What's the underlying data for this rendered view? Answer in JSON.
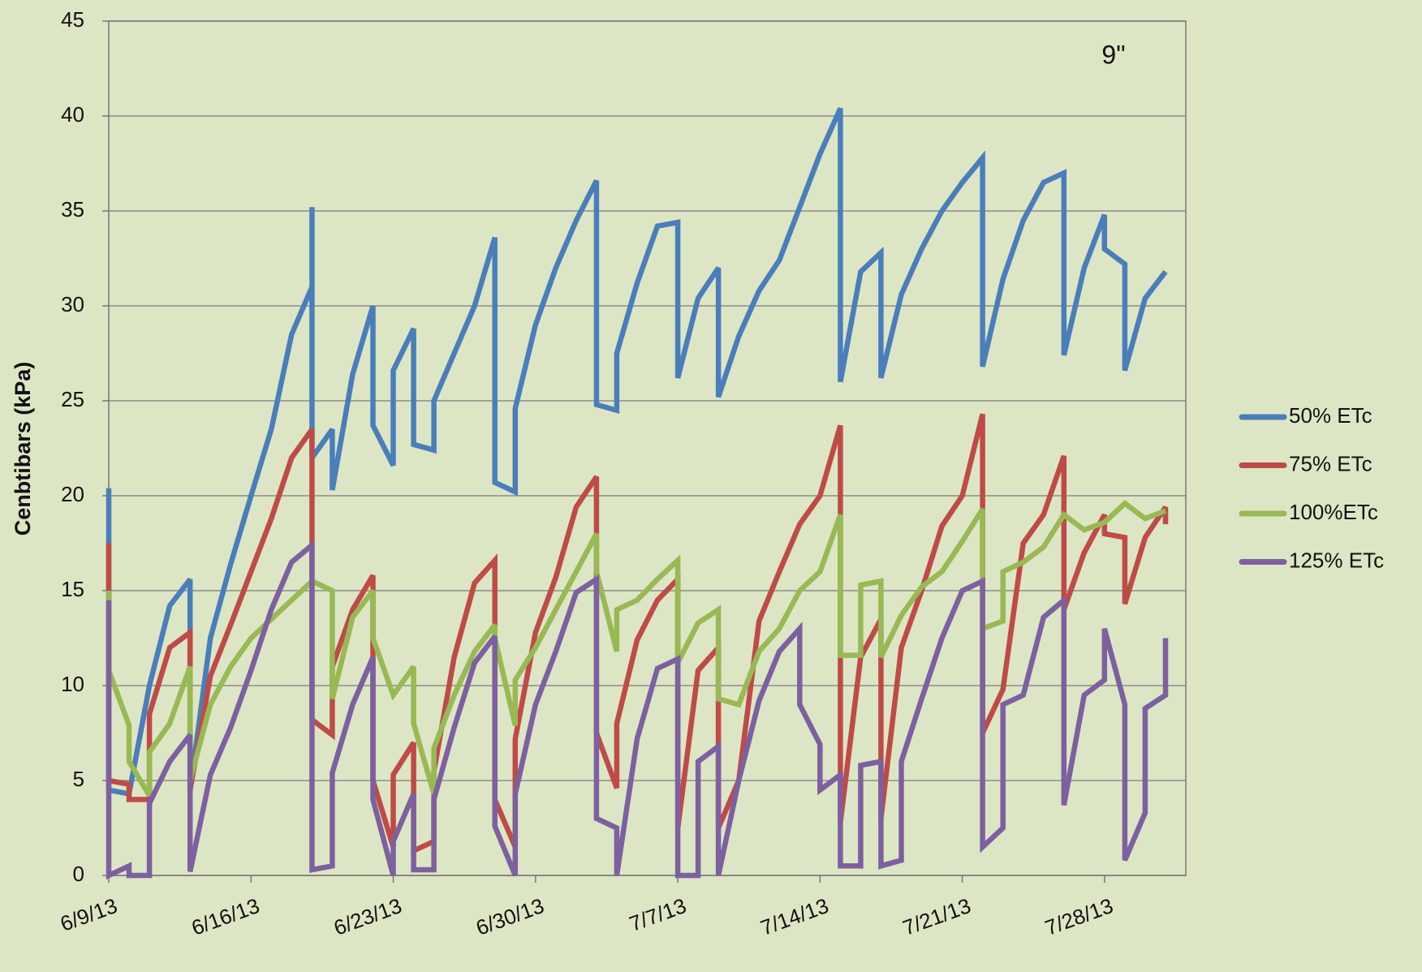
{
  "chart_data": {
    "type": "line",
    "annotation": "9\"",
    "y_label": "Cenbtibars (kPa)",
    "xlim": [
      "2013-06-09",
      "2013-08-01"
    ],
    "xticks": [
      {
        "value": "2013-06-09",
        "label": "6/9/13"
      },
      {
        "value": "2013-06-16",
        "label": "6/16/13"
      },
      {
        "value": "2013-06-23",
        "label": "6/23/13"
      },
      {
        "value": "2013-06-30",
        "label": "6/30/13"
      },
      {
        "value": "2013-07-07",
        "label": "7/7/13"
      },
      {
        "value": "2013-07-14",
        "label": "7/14/13"
      },
      {
        "value": "2013-07-21",
        "label": "7/21/13"
      },
      {
        "value": "2013-07-28",
        "label": "7/28/13"
      }
    ],
    "ylim": [
      0,
      45
    ],
    "yticks": [
      0,
      5,
      10,
      15,
      20,
      25,
      30,
      35,
      40,
      45
    ],
    "grid": true,
    "legend": "right",
    "series": [
      {
        "name": "50% ETc",
        "color": "#4a7ebb",
        "x": [
          "2013-06-09",
          "2013-06-09",
          "2013-06-10",
          "2013-06-11",
          "2013-06-12",
          "2013-06-13",
          "2013-06-13",
          "2013-06-14",
          "2013-06-15",
          "2013-06-16",
          "2013-06-17",
          "2013-06-18",
          "2013-06-19",
          "2013-06-19",
          "2013-06-19",
          "2013-06-20",
          "2013-06-20",
          "2013-06-21",
          "2013-06-22",
          "2013-06-22",
          "2013-06-23",
          "2013-06-23",
          "2013-06-24",
          "2013-06-24",
          "2013-06-25",
          "2013-06-25",
          "2013-06-26",
          "2013-06-27",
          "2013-06-28",
          "2013-06-28",
          "2013-06-29",
          "2013-06-29",
          "2013-06-30",
          "2013-07-01",
          "2013-07-02",
          "2013-07-03",
          "2013-07-03",
          "2013-07-04",
          "2013-07-04",
          "2013-07-05",
          "2013-07-06",
          "2013-07-07",
          "2013-07-07",
          "2013-07-08",
          "2013-07-09",
          "2013-07-09",
          "2013-07-10",
          "2013-07-11",
          "2013-07-12",
          "2013-07-13",
          "2013-07-14",
          "2013-07-15",
          "2013-07-15",
          "2013-07-16",
          "2013-07-17",
          "2013-07-17",
          "2013-07-18",
          "2013-07-19",
          "2013-07-20",
          "2013-07-21",
          "2013-07-22",
          "2013-07-22",
          "2013-07-23",
          "2013-07-24",
          "2013-07-25",
          "2013-07-26",
          "2013-07-26",
          "2013-07-27",
          "2013-07-28",
          "2013-07-28",
          "2013-07-29",
          "2013-07-29",
          "2013-07-30",
          "2013-07-31"
        ],
        "values": [
          20.4,
          4.5,
          4.3,
          10,
          14.2,
          15.6,
          4.5,
          12.5,
          16.4,
          20,
          23.5,
          28.5,
          31,
          35.2,
          22,
          23.5,
          20.3,
          26.4,
          30,
          23.7,
          21.6,
          26.6,
          28.8,
          22.7,
          22.4,
          25,
          27.5,
          30,
          33.6,
          20.7,
          20.2,
          24.6,
          29,
          32,
          34.5,
          36.6,
          24.8,
          24.5,
          27.5,
          31.2,
          34.2,
          34.4,
          26.2,
          30.4,
          32,
          25.2,
          28.4,
          30.8,
          32.4,
          35.2,
          38,
          40.4,
          26,
          31.8,
          32.8,
          26.2,
          30.6,
          33,
          35,
          36.5,
          37.8,
          26.8,
          31.4,
          34.5,
          36.5,
          37,
          27.4,
          32,
          34.8,
          33,
          32.2,
          26.6,
          30.4,
          31.8
        ]
      },
      {
        "name": "75% ETc",
        "color": "#be4b48",
        "x": [
          "2013-06-09",
          "2013-06-09",
          "2013-06-10",
          "2013-06-10",
          "2013-06-11",
          "2013-06-11",
          "2013-06-12",
          "2013-06-13",
          "2013-06-13",
          "2013-06-14",
          "2013-06-15",
          "2013-06-16",
          "2013-06-17",
          "2013-06-18",
          "2013-06-19",
          "2013-06-19",
          "2013-06-20",
          "2013-06-20",
          "2013-06-21",
          "2013-06-22",
          "2013-06-22",
          "2013-06-23",
          "2013-06-23",
          "2013-06-24",
          "2013-06-24",
          "2013-06-25",
          "2013-06-25",
          "2013-06-26",
          "2013-06-27",
          "2013-06-28",
          "2013-06-28",
          "2013-06-29",
          "2013-06-29",
          "2013-06-30",
          "2013-07-01",
          "2013-07-02",
          "2013-07-03",
          "2013-07-03",
          "2013-07-04",
          "2013-07-04",
          "2013-07-05",
          "2013-07-06",
          "2013-07-07",
          "2013-07-07",
          "2013-07-08",
          "2013-07-09",
          "2013-07-09",
          "2013-07-10",
          "2013-07-11",
          "2013-07-12",
          "2013-07-13",
          "2013-07-14",
          "2013-07-15",
          "2013-07-15",
          "2013-07-16",
          "2013-07-17",
          "2013-07-17",
          "2013-07-18",
          "2013-07-19",
          "2013-07-20",
          "2013-07-21",
          "2013-07-22",
          "2013-07-22",
          "2013-07-23",
          "2013-07-24",
          "2013-07-25",
          "2013-07-26",
          "2013-07-26",
          "2013-07-27",
          "2013-07-28",
          "2013-07-28",
          "2013-07-29",
          "2013-07-29",
          "2013-07-30",
          "2013-07-31",
          "2013-07-31"
        ],
        "values": [
          17.5,
          5,
          4.8,
          4,
          4,
          8.5,
          12,
          12.8,
          4.5,
          10.5,
          13.2,
          16,
          18.8,
          22,
          23.5,
          8.2,
          7.4,
          11,
          14,
          15.8,
          5,
          1.5,
          5.3,
          7,
          1.3,
          1.8,
          5.5,
          11.5,
          15.4,
          16.6,
          4,
          1.5,
          7.2,
          12.8,
          15.7,
          19.4,
          21,
          7.5,
          4.6,
          8,
          12.4,
          14.5,
          15.6,
          2.5,
          10.8,
          12,
          2.5,
          5,
          13.4,
          16,
          18.5,
          20,
          23.7,
          2.8,
          11.5,
          13.5,
          3,
          12,
          15,
          18.4,
          20,
          24.3,
          7.5,
          9.8,
          17.5,
          19,
          22.1,
          14,
          17,
          19,
          18,
          17.8,
          14.3,
          17.8,
          19.4,
          18.5
        ]
      },
      {
        "name": "100%ETc",
        "color": "#98b954",
        "x": [
          "2013-06-09",
          "2013-06-09",
          "2013-06-10",
          "2013-06-10",
          "2013-06-11",
          "2013-06-11",
          "2013-06-12",
          "2013-06-13",
          "2013-06-13",
          "2013-06-14",
          "2013-06-15",
          "2013-06-16",
          "2013-06-17",
          "2013-06-18",
          "2013-06-19",
          "2013-06-20",
          "2013-06-20",
          "2013-06-21",
          "2013-06-22",
          "2013-06-22",
          "2013-06-23",
          "2013-06-24",
          "2013-06-24",
          "2013-06-25",
          "2013-06-25",
          "2013-06-26",
          "2013-06-27",
          "2013-06-28",
          "2013-06-28",
          "2013-06-29",
          "2013-06-29",
          "2013-06-30",
          "2013-07-01",
          "2013-07-02",
          "2013-07-03",
          "2013-07-03",
          "2013-07-04",
          "2013-07-04",
          "2013-07-05",
          "2013-07-06",
          "2013-07-07",
          "2013-07-07",
          "2013-07-08",
          "2013-07-09",
          "2013-07-09",
          "2013-07-10",
          "2013-07-11",
          "2013-07-12",
          "2013-07-13",
          "2013-07-14",
          "2013-07-15",
          "2013-07-15",
          "2013-07-16",
          "2013-07-16",
          "2013-07-17",
          "2013-07-17",
          "2013-07-18",
          "2013-07-19",
          "2013-07-20",
          "2013-07-21",
          "2013-07-22",
          "2013-07-22",
          "2013-07-23",
          "2013-07-23",
          "2013-07-24",
          "2013-07-25",
          "2013-07-26",
          "2013-07-27",
          "2013-07-28",
          "2013-07-29",
          "2013-07-30",
          "2013-07-31"
        ],
        "values": [
          15,
          10.8,
          7.9,
          6,
          4.2,
          6.5,
          8,
          11,
          5,
          9,
          11,
          12.5,
          13.5,
          14.5,
          15.5,
          15,
          9.3,
          13.6,
          15,
          12.5,
          9.5,
          11,
          8,
          4.3,
          6.7,
          9.5,
          11.8,
          13.2,
          12.5,
          7.9,
          10.3,
          12,
          14,
          16,
          18,
          16,
          11.8,
          14,
          14.5,
          15.6,
          16.6,
          11.2,
          13.3,
          14,
          9.3,
          9,
          11.8,
          13,
          15,
          16,
          19,
          11.6,
          11.6,
          15.3,
          15.5,
          11.5,
          13.7,
          15.2,
          16,
          17.6,
          19.3,
          13,
          13.4,
          16,
          16.5,
          17.3,
          19,
          18.2,
          18.6,
          19.6,
          18.8,
          19.2
        ]
      },
      {
        "name": "125% ETc",
        "color": "#7d60a0",
        "x": [
          "2013-06-09",
          "2013-06-09",
          "2013-06-10",
          "2013-06-10",
          "2013-06-11",
          "2013-06-11",
          "2013-06-12",
          "2013-06-13",
          "2013-06-13",
          "2013-06-14",
          "2013-06-15",
          "2013-06-16",
          "2013-06-17",
          "2013-06-18",
          "2013-06-19",
          "2013-06-19",
          "2013-06-20",
          "2013-06-20",
          "2013-06-21",
          "2013-06-22",
          "2013-06-22",
          "2013-06-23",
          "2013-06-23",
          "2013-06-24",
          "2013-06-24",
          "2013-06-25",
          "2013-06-25",
          "2013-06-26",
          "2013-06-27",
          "2013-06-28",
          "2013-06-28",
          "2013-06-29",
          "2013-06-29",
          "2013-06-30",
          "2013-07-01",
          "2013-07-02",
          "2013-07-03",
          "2013-07-03",
          "2013-07-04",
          "2013-07-04",
          "2013-07-05",
          "2013-07-06",
          "2013-07-07",
          "2013-07-07",
          "2013-07-08",
          "2013-07-08",
          "2013-07-09",
          "2013-07-09",
          "2013-07-10",
          "2013-07-11",
          "2013-07-12",
          "2013-07-13",
          "2013-07-13",
          "2013-07-14",
          "2013-07-14",
          "2013-07-15",
          "2013-07-15",
          "2013-07-16",
          "2013-07-16",
          "2013-07-17",
          "2013-07-17",
          "2013-07-18",
          "2013-07-18",
          "2013-07-19",
          "2013-07-20",
          "2013-07-21",
          "2013-07-22",
          "2013-07-22",
          "2013-07-23",
          "2013-07-23",
          "2013-07-24",
          "2013-07-25",
          "2013-07-26",
          "2013-07-26",
          "2013-07-27",
          "2013-07-28",
          "2013-07-28",
          "2013-07-29",
          "2013-07-29",
          "2013-07-30",
          "2013-07-30",
          "2013-07-31",
          "2013-07-31"
        ],
        "values": [
          14.5,
          0,
          0.5,
          0,
          0,
          3.8,
          6,
          7.4,
          0.2,
          5.3,
          7.8,
          10.8,
          14,
          16.5,
          17.4,
          0.3,
          0.5,
          5.4,
          9,
          11.5,
          4,
          0,
          1.8,
          4.3,
          0.3,
          0.3,
          4,
          7.8,
          11.2,
          12.6,
          2.6,
          0,
          4.3,
          9,
          11.8,
          14.9,
          15.6,
          3,
          2.5,
          0,
          7.2,
          10.9,
          11.4,
          0,
          0,
          6,
          6.8,
          0,
          5,
          9.2,
          11.8,
          13,
          9,
          6.9,
          4.5,
          5.3,
          0.5,
          0.5,
          5.8,
          6,
          0.5,
          0.8,
          6,
          9.3,
          12.5,
          15,
          15.5,
          1.5,
          2.5,
          9,
          9.5,
          13.6,
          14.5,
          3.7,
          9.5,
          10.3,
          13,
          9,
          0.8,
          3.3,
          8.8,
          9.5,
          12.5
        ]
      }
    ]
  }
}
